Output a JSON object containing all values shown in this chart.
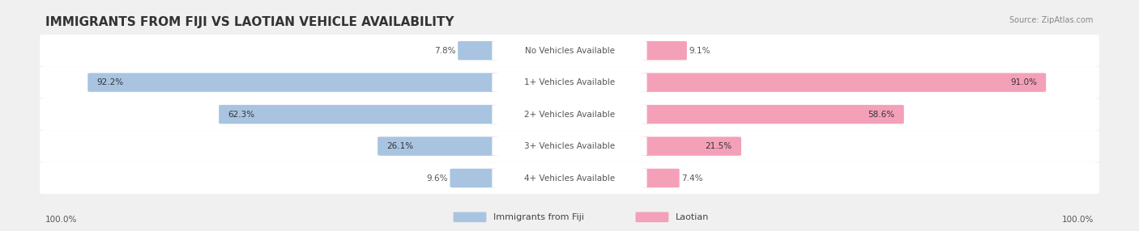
{
  "title": "IMMIGRANTS FROM FIJI VS LAOTIAN VEHICLE AVAILABILITY",
  "source": "Source: ZipAtlas.com",
  "categories": [
    "No Vehicles Available",
    "1+ Vehicles Available",
    "2+ Vehicles Available",
    "3+ Vehicles Available",
    "4+ Vehicles Available"
  ],
  "fiji_values": [
    7.8,
    92.2,
    62.3,
    26.1,
    9.6
  ],
  "laotian_values": [
    9.1,
    91.0,
    58.6,
    21.5,
    7.4
  ],
  "fiji_color": "#a8c4e0",
  "laotian_color": "#f4a0b8",
  "fiji_color_dark": "#7bafd4",
  "laotian_color_dark": "#f07898",
  "background_color": "#f0f0f0",
  "row_bg_color": "#e8e8e8",
  "label_color": "#555555",
  "title_color": "#333333",
  "max_value": 100.0,
  "bar_height": 0.55,
  "fig_width": 14.06,
  "fig_height": 2.86
}
